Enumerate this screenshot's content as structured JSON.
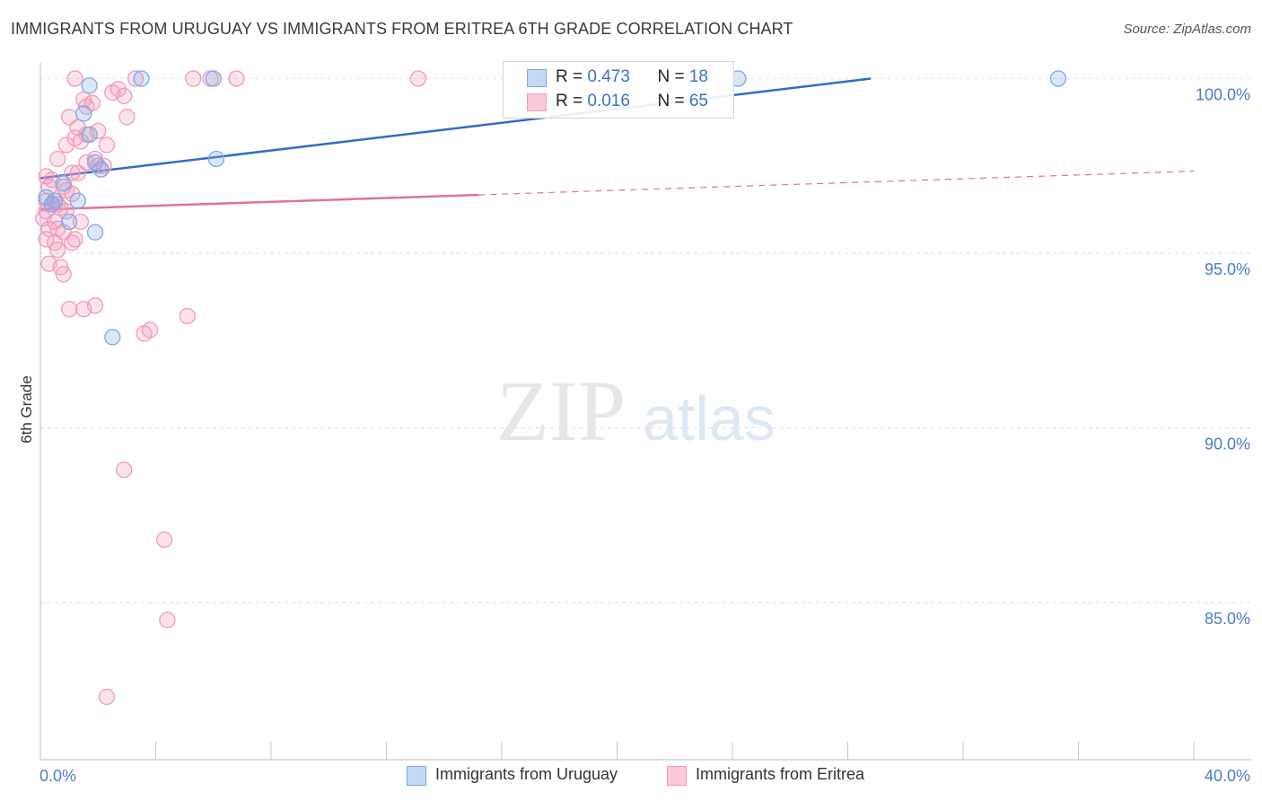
{
  "title": "IMMIGRANTS FROM URUGUAY VS IMMIGRANTS FROM ERITREA 6TH GRADE CORRELATION CHART",
  "source": "Source: ZipAtlas.com",
  "watermark": {
    "zip": "ZIP",
    "atlas": "atlas"
  },
  "colors": {
    "blue": "#7fa8e6",
    "blue_line": "#2f6ccc",
    "pink": "#f29ab9",
    "pink_line": "#e2709a",
    "tick_text": "#4a7cc9"
  },
  "legend": {
    "uruguay": {
      "r_label": "R = ",
      "r_value": "0.473",
      "n_label": "N = ",
      "n_value": "18"
    },
    "eritrea": {
      "r_label": "R = ",
      "r_value": "0.016",
      "n_label": "N = ",
      "n_value": "65"
    }
  },
  "bottom_legend": {
    "uruguay": "Immigrants from Uruguay",
    "eritrea": "Immigrants from Eritrea"
  },
  "chart_data": {
    "type": "scatter",
    "title": "IMMIGRANTS FROM URUGUAY VS IMMIGRANTS FROM ERITREA 6TH GRADE CORRELATION CHART",
    "xlabel": "",
    "ylabel": "6th Grade",
    "xlim": [
      0,
      40
    ],
    "ylim": [
      80.5,
      100.45
    ],
    "x_tick_labels": [
      "0.0%",
      "40.0%"
    ],
    "y_ticks": [
      85,
      90,
      95,
      100
    ],
    "y_tick_labels": [
      "85.0%",
      "90.0%",
      "95.0%",
      "100.0%"
    ],
    "grid": true,
    "legend_position": "top-center",
    "series": [
      {
        "name": "Immigrants from Uruguay",
        "color": "#7fa8e6",
        "trend": {
          "x0": 0,
          "y0": 97.15,
          "x1": 28.8,
          "y1": 100.0,
          "dashed_to": null
        },
        "points": [
          [
            0.2,
            96.6
          ],
          [
            0.4,
            96.4
          ],
          [
            0.5,
            96.5
          ],
          [
            1.3,
            96.5
          ],
          [
            1.7,
            99.8
          ],
          [
            1.5,
            99.0
          ],
          [
            1.9,
            97.6
          ],
          [
            2.1,
            97.4
          ],
          [
            1.9,
            95.6
          ],
          [
            1.7,
            98.4
          ],
          [
            3.5,
            100.0
          ],
          [
            6.0,
            100.0
          ],
          [
            6.1,
            97.7
          ],
          [
            2.5,
            92.6
          ],
          [
            24.2,
            100.0
          ],
          [
            35.3,
            100.0
          ],
          [
            0.8,
            97.0
          ],
          [
            1.0,
            95.9
          ]
        ]
      },
      {
        "name": "Immigrants from Eritrea",
        "color": "#f29ab9",
        "trend": {
          "x0": 0,
          "y0": 96.25,
          "x1": 15.2,
          "y1": 96.67,
          "dashed_to": [
            40,
            97.35
          ]
        },
        "points": [
          [
            1.2,
            100.0
          ],
          [
            3.3,
            100.0
          ],
          [
            5.3,
            100.0
          ],
          [
            5.9,
            100.0
          ],
          [
            6.8,
            100.0
          ],
          [
            13.1,
            100.0
          ],
          [
            2.5,
            99.6
          ],
          [
            2.9,
            99.5
          ],
          [
            1.5,
            99.4
          ],
          [
            1.6,
            99.2
          ],
          [
            1.0,
            98.9
          ],
          [
            2.0,
            98.5
          ],
          [
            3.0,
            98.9
          ],
          [
            1.3,
            98.6
          ],
          [
            1.2,
            98.3
          ],
          [
            0.9,
            98.1
          ],
          [
            1.4,
            98.2
          ],
          [
            2.3,
            98.1
          ],
          [
            0.6,
            97.7
          ],
          [
            1.9,
            97.7
          ],
          [
            0.2,
            97.2
          ],
          [
            0.3,
            96.9
          ],
          [
            0.8,
            96.9
          ],
          [
            1.3,
            97.3
          ],
          [
            1.6,
            97.6
          ],
          [
            2.0,
            97.5
          ],
          [
            0.2,
            96.5
          ],
          [
            0.4,
            96.4
          ],
          [
            0.6,
            96.4
          ],
          [
            0.7,
            96.3
          ],
          [
            0.9,
            96.2
          ],
          [
            0.1,
            96.0
          ],
          [
            0.5,
            95.9
          ],
          [
            1.4,
            95.9
          ],
          [
            0.3,
            95.7
          ],
          [
            0.6,
            95.7
          ],
          [
            0.2,
            95.4
          ],
          [
            0.5,
            95.3
          ],
          [
            1.1,
            95.3
          ],
          [
            0.6,
            95.1
          ],
          [
            0.3,
            94.7
          ],
          [
            0.7,
            94.6
          ],
          [
            0.8,
            94.4
          ],
          [
            1.0,
            93.4
          ],
          [
            1.5,
            93.4
          ],
          [
            1.9,
            93.5
          ],
          [
            3.6,
            92.7
          ],
          [
            3.8,
            92.8
          ],
          [
            5.1,
            93.2
          ],
          [
            2.9,
            88.8
          ],
          [
            4.3,
            86.8
          ],
          [
            4.4,
            84.5
          ],
          [
            2.3,
            82.3
          ],
          [
            1.1,
            96.7
          ],
          [
            0.4,
            97.1
          ],
          [
            1.1,
            97.3
          ],
          [
            0.9,
            96.8
          ],
          [
            0.8,
            95.6
          ],
          [
            1.2,
            95.4
          ],
          [
            0.2,
            96.2
          ],
          [
            0.5,
            96.5
          ],
          [
            2.7,
            99.7
          ],
          [
            1.6,
            98.4
          ],
          [
            1.8,
            99.3
          ],
          [
            2.2,
            97.5
          ]
        ]
      }
    ]
  }
}
